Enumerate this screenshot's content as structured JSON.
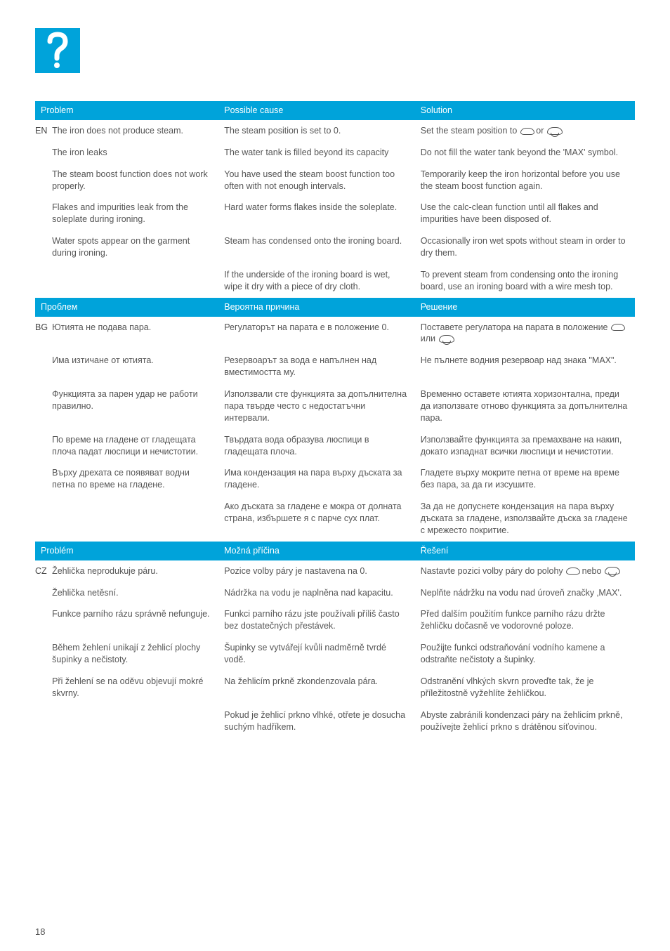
{
  "page_number": "18",
  "icon": {
    "background_color": "#00a3da",
    "glyph": "?"
  },
  "table": {
    "header_bg": "#00a3da",
    "header_fg": "#ffffff",
    "body_fg": "#555555",
    "sections": [
      {
        "lang_code": "EN",
        "headers": [
          "Problem",
          "Possible cause",
          "Solution"
        ],
        "rows": [
          {
            "p": "The iron does not produce steam.",
            "c": "The steam position is set to 0.",
            "s_prefix": "Set the steam position to ",
            "s_sep": " or ",
            "s_icons": true
          },
          {
            "p": "The iron leaks",
            "c": "The water tank is filled beyond its capacity",
            "s": "Do not fill the water tank beyond the 'MAX' symbol."
          },
          {
            "p": "The steam boost function does not work properly.",
            "c": "You have used the steam boost function too often with not enough intervals.",
            "s": "Temporarily keep the iron horizontal before you use the steam boost function again."
          },
          {
            "p": "Flakes and impurities leak from the soleplate during ironing.",
            "c": "Hard water forms flakes inside the soleplate.",
            "s": "Use the calc-clean function until all flakes and impurities have been disposed of."
          },
          {
            "p": "Water spots appear on the garment during ironing.",
            "c": "Steam has condensed onto the ironing board.",
            "s": "Occasionally iron wet spots without steam in order to dry them."
          },
          {
            "p": "",
            "c": "If the underside of the ironing board is wet, wipe it dry with a piece of dry cloth.",
            "s": "To prevent steam from condensing onto the ironing board, use an ironing board with a wire mesh top."
          }
        ]
      },
      {
        "lang_code": "BG",
        "headers": [
          "Проблем",
          "Вероятна причина",
          "Решение"
        ],
        "rows": [
          {
            "p": "Ютията не подава пара.",
            "c": "Регулаторът на парата е в положение 0.",
            "s_prefix": "Поставете регулатора на парата в положение ",
            "s_sep": " или ",
            "s_icons": true
          },
          {
            "p": "Има изтичане от ютията.",
            "c": "Резервоарът за вода е напълнен над вместимостта му.",
            "s": "Не пълнете водния резервоар над знака \"MAX\"."
          },
          {
            "p": "Функцията за парен удар не работи правилно.",
            "c": "Използвали сте функцията за допълнителна пара твърде често с недостатъчни интервали.",
            "s": "Временно оставете ютията хоризонтална, преди да използвате отново функцията за допълнителна пара."
          },
          {
            "p": "По време на гладене от гладещата плоча падат люспици и нечистотии.",
            "c": "Твърдата вода образува люспици в гладещата плоча.",
            "s": "Използвайте функцията за премахване на накип, докато изпаднат всички люспици и нечистотии."
          },
          {
            "p": "Върху дрехата се появяват водни петна по време на гладене.",
            "c": "Има кондензация на пара върху дъската за гладене.",
            "s": "Гладете върху мокрите петна от време на време без пара, за да ги изсушите."
          },
          {
            "p": "",
            "c": "Ако дъската за гладене е мокра от долната страна, избършете я с парче сух плат.",
            "s": "За да не допуснете кондензация на пара върху дъската за гладене, използвайте дъска за гладене с мрежесто покритие."
          }
        ]
      },
      {
        "lang_code": "CZ",
        "headers": [
          "Problém",
          "Možná příčina",
          "Řešení"
        ],
        "rows": [
          {
            "p": "Žehlička neprodukuje páru.",
            "c": "Pozice volby páry je nastavena na 0.",
            "s_prefix": "Nastavte pozici volby páry do polohy ",
            "s_sep": " nebo ",
            "s_icons": true
          },
          {
            "p": "Žehlička netěsní.",
            "c": "Nádržka na vodu je naplněna nad kapacitu.",
            "s": "Neplňte nádržku na vodu nad úroveň značky ‚MAX'."
          },
          {
            "p": "Funkce parního rázu správně nefunguje.",
            "c": "Funkci parního rázu jste používali příliš často bez dostatečných přestávek.",
            "s": "Před dalším použitím funkce parního rázu držte žehličku dočasně ve vodorovné poloze."
          },
          {
            "p": "Během žehlení unikají z žehlicí plochy šupinky a nečistoty.",
            "c": "Šupinky se vytvářejí kvůli nadměrně tvrdé vodě.",
            "s": "Použijte funkci odstraňování vodního kamene a odstraňte nečistoty a šupinky."
          },
          {
            "p": "Při žehlení se na oděvu objevují mokré skvrny.",
            "c": "Na žehlicím prkně zkondenzovala pára.",
            "s": "Odstranění vlhkých skvrn proveďte tak, že je příležitostně vyžehlíte žehličkou."
          },
          {
            "p": "",
            "c": "Pokud je žehlicí prkno vlhké, otřete je dosucha suchým hadříkem.",
            "s": "Abyste zabránili kondenzaci páry na žehlicím prkně, používejte žehlicí prkno s drátěnou síťovinou."
          }
        ]
      }
    ]
  }
}
